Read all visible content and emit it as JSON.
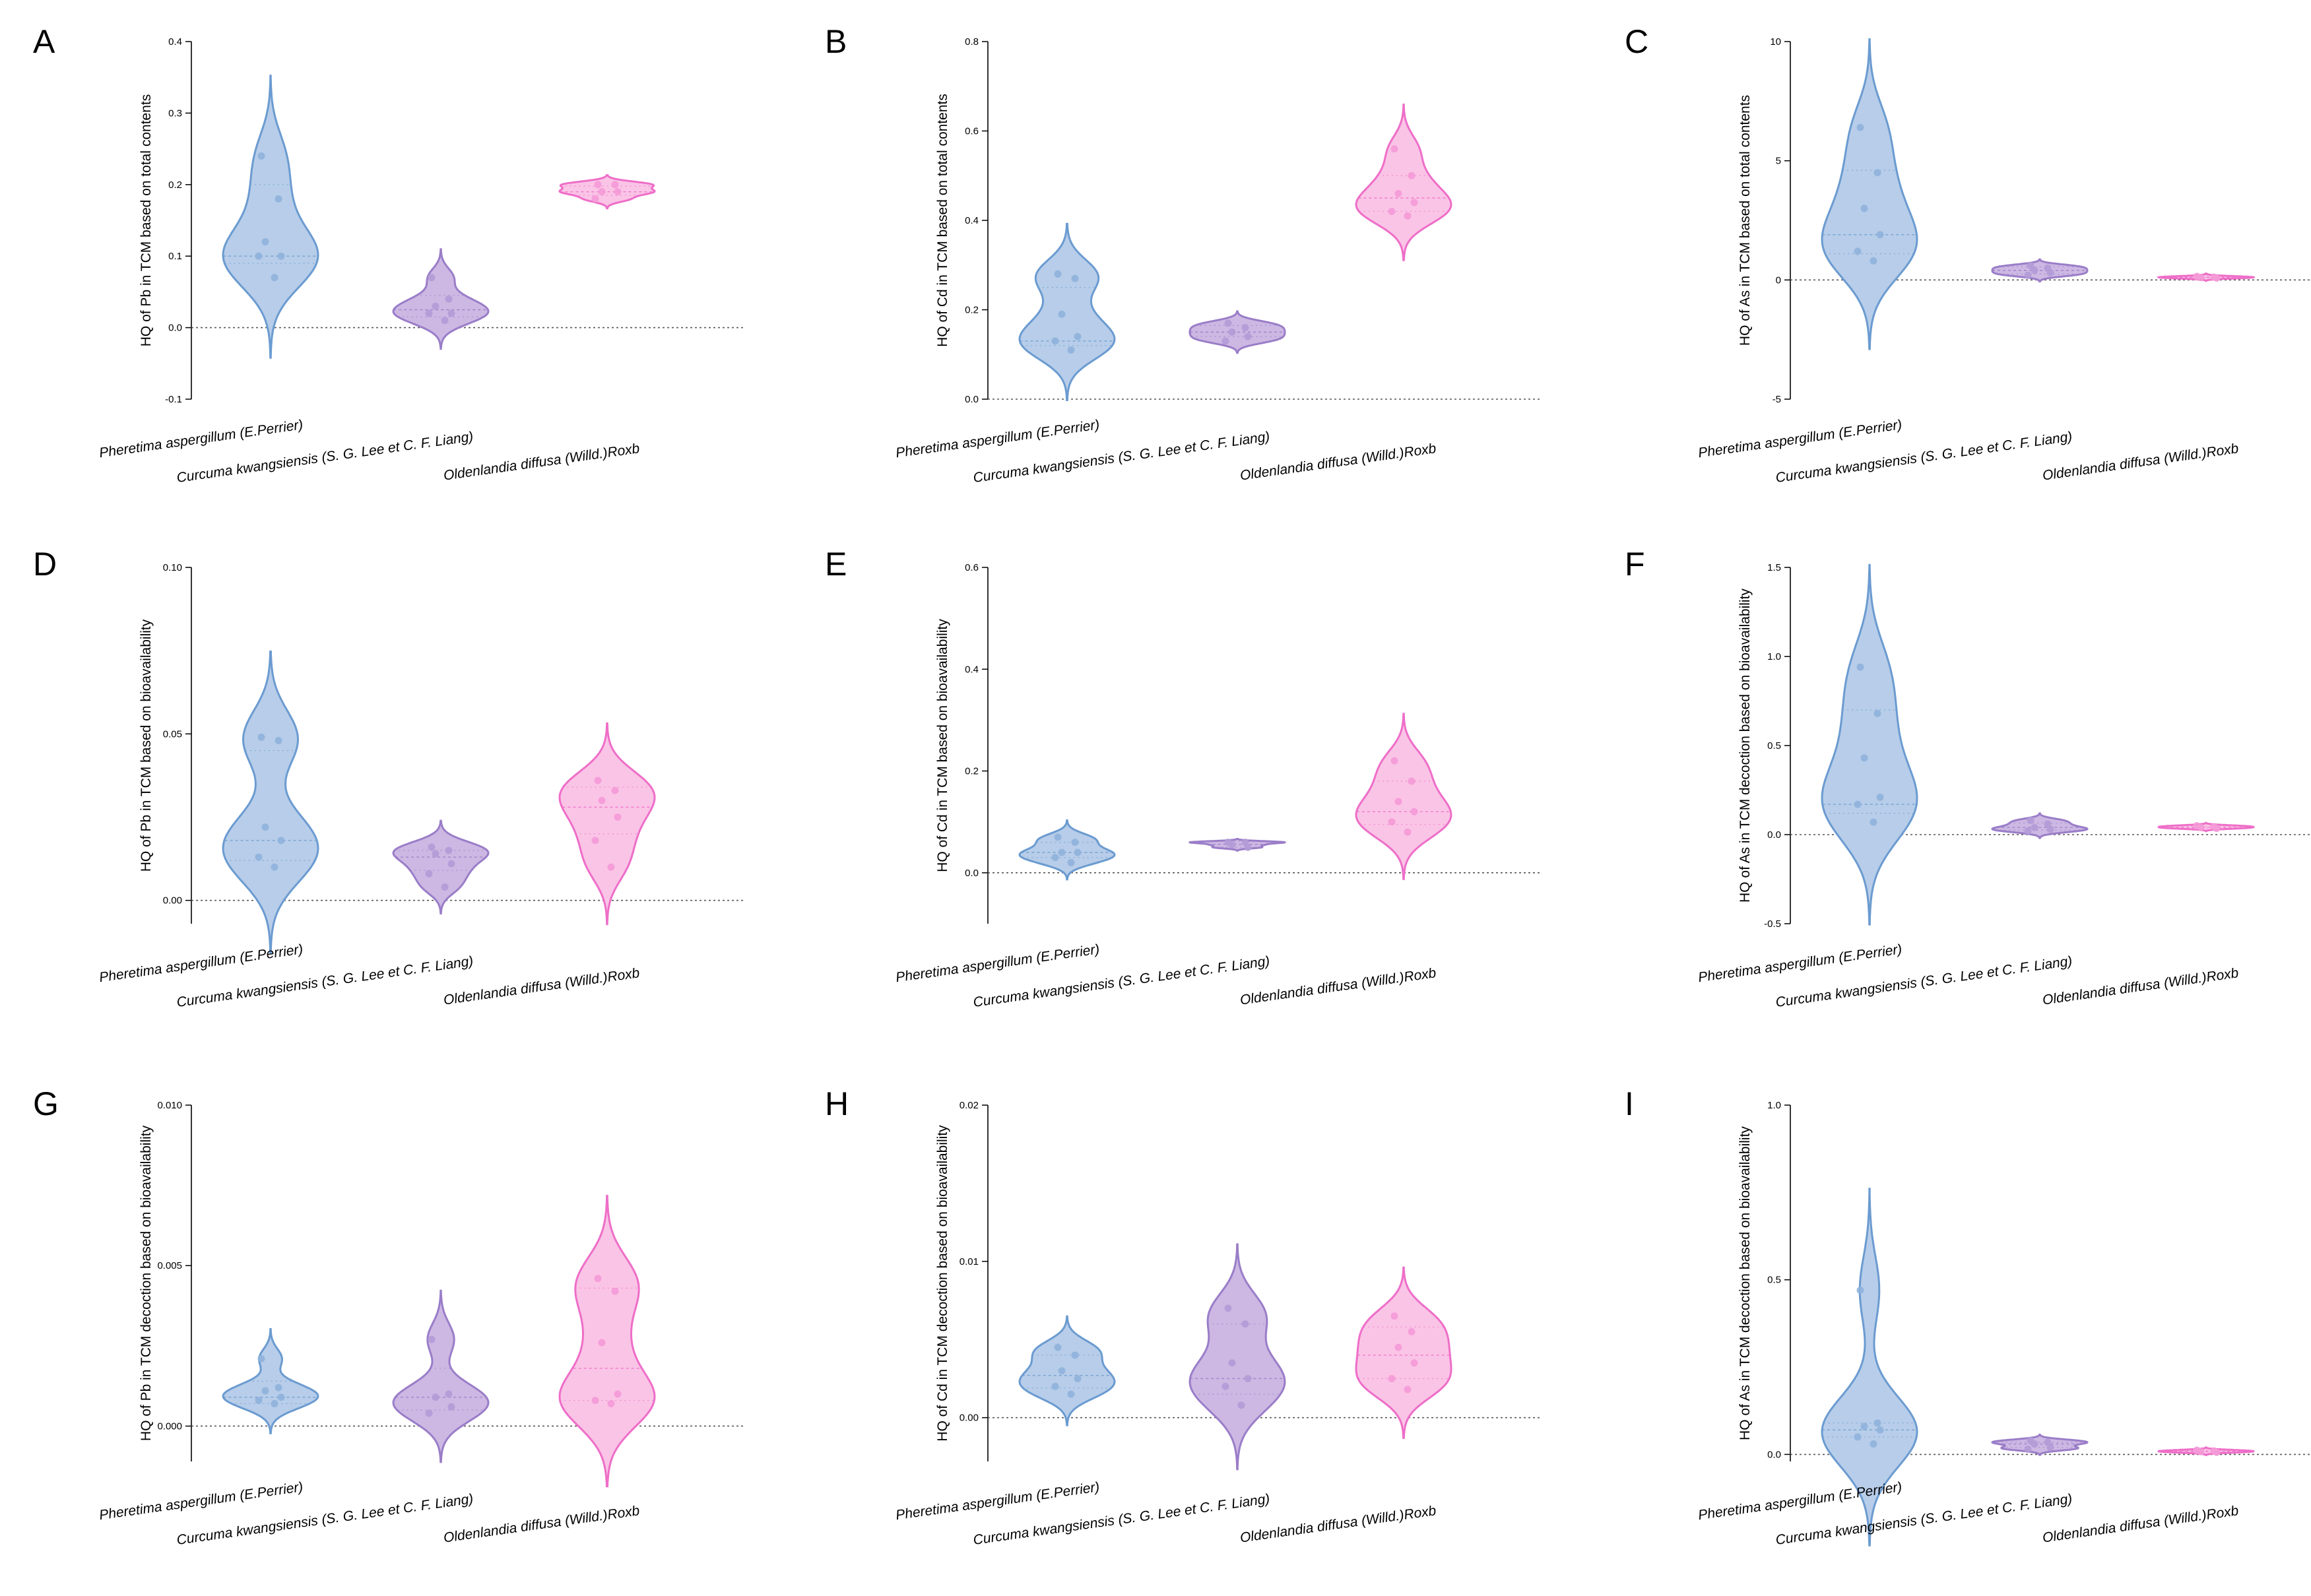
{
  "colors": {
    "blue_fill": "#b7cde9",
    "blue_edge": "#6b9bd0",
    "blue_point": "#8fb2dc",
    "purple_fill": "#ccb8e3",
    "purple_edge": "#9a7dc8",
    "purple_point": "#b29bd6",
    "pink_fill": "#fac4e6",
    "pink_edge": "#ee6ec8",
    "pink_point": "#f49ad7"
  },
  "chart_data": [
    {
      "panel": "A",
      "type": "violin",
      "ylabel": "HQ of Pb in TCM based on total contents",
      "ylim": [
        -0.1,
        0.4
      ],
      "yticks": [
        {
          "v": -0.1,
          "label": "-0.1"
        },
        {
          "v": 0.0,
          "label": "0.0"
        },
        {
          "v": 0.1,
          "label": "0.1"
        },
        {
          "v": 0.2,
          "label": "0.2"
        },
        {
          "v": 0.3,
          "label": "0.3"
        },
        {
          "v": 0.4,
          "label": "0.4"
        }
      ],
      "categories": [
        "Pheretima aspergillum (E.Perrier)",
        "Curcuma kwangsiensis (S. G. Lee et C. F. Liang)",
        "Oldenlandia diffusa (Willd.)Roxb"
      ],
      "series": [
        {
          "values": [
            0.24,
            0.18,
            0.12,
            0.1,
            0.1,
            0.07
          ],
          "median": 0.1,
          "quartiles": [
            0.09,
            0.2
          ]
        },
        {
          "values": [
            0.07,
            0.04,
            0.03,
            0.02,
            0.02,
            0.01
          ],
          "median": 0.025,
          "quartiles": [
            0.015,
            0.045
          ]
        },
        {
          "values": [
            0.2,
            0.2,
            0.19,
            0.19,
            0.18
          ],
          "median": 0.19,
          "quartiles": [
            0.185,
            0.198
          ]
        }
      ]
    },
    {
      "panel": "B",
      "type": "violin",
      "ylabel": "HQ of Cd in TCM based on total contents",
      "ylim": [
        0.0,
        0.8
      ],
      "yticks": [
        {
          "v": 0.0,
          "label": "0.0"
        },
        {
          "v": 0.2,
          "label": "0.2"
        },
        {
          "v": 0.4,
          "label": "0.4"
        },
        {
          "v": 0.6,
          "label": "0.6"
        },
        {
          "v": 0.8,
          "label": "0.8"
        }
      ],
      "categories": [
        "Pheretima aspergillum (E.Perrier)",
        "Curcuma kwangsiensis (S. G. Lee et C. F. Liang)",
        "Oldenlandia diffusa (Willd.)Roxb"
      ],
      "series": [
        {
          "values": [
            0.28,
            0.27,
            0.19,
            0.14,
            0.13,
            0.11
          ],
          "median": 0.13,
          "quartiles": [
            0.12,
            0.25
          ]
        },
        {
          "values": [
            0.17,
            0.16,
            0.15,
            0.14,
            0.13
          ],
          "median": 0.15,
          "quartiles": [
            0.14,
            0.165
          ]
        },
        {
          "values": [
            0.56,
            0.5,
            0.46,
            0.44,
            0.42,
            0.41
          ],
          "median": 0.45,
          "quartiles": [
            0.42,
            0.5
          ]
        }
      ]
    },
    {
      "panel": "C",
      "type": "violin",
      "ylabel": "HQ of As in TCM based on total contents",
      "ylim": [
        -5,
        10
      ],
      "yticks": [
        {
          "v": -5,
          "label": "-5"
        },
        {
          "v": 0,
          "label": "0"
        },
        {
          "v": 5,
          "label": "5"
        },
        {
          "v": 10,
          "label": "10"
        }
      ],
      "categories": [
        "Pheretima aspergillum (E.Perrier)",
        "Curcuma kwangsiensis (S. G. Lee et C. F. Liang)",
        "Oldenlandia diffusa (Willd.)Roxb"
      ],
      "series": [
        {
          "values": [
            6.4,
            4.5,
            3.0,
            1.9,
            1.2,
            0.8
          ],
          "median": 1.9,
          "quartiles": [
            1.1,
            4.6
          ]
        },
        {
          "values": [
            0.6,
            0.5,
            0.4,
            0.3,
            0.2
          ],
          "median": 0.4,
          "quartiles": [
            0.25,
            0.55
          ]
        },
        {
          "values": [
            0.15,
            0.12,
            0.1,
            0.08
          ],
          "median": 0.11,
          "quartiles": [
            0.09,
            0.13
          ]
        }
      ]
    },
    {
      "panel": "D",
      "type": "violin",
      "ylabel": "HQ of Pb in TCM based on bioavailability",
      "ylim": [
        -0.007,
        0.1
      ],
      "yticks": [
        {
          "v": 0.0,
          "label": "0.00"
        },
        {
          "v": 0.05,
          "label": "0.05"
        },
        {
          "v": 0.1,
          "label": "0.10"
        }
      ],
      "categories": [
        "Pheretima aspergillum (E.Perrier)",
        "Curcuma kwangsiensis (S. G. Lee et C. F. Liang)",
        "Oldenlandia diffusa (Willd.)Roxb"
      ],
      "series": [
        {
          "values": [
            0.049,
            0.048,
            0.022,
            0.018,
            0.013,
            0.01
          ],
          "median": 0.018,
          "quartiles": [
            0.012,
            0.045
          ]
        },
        {
          "values": [
            0.016,
            0.015,
            0.014,
            0.011,
            0.008,
            0.004
          ],
          "median": 0.013,
          "quartiles": [
            0.009,
            0.015
          ]
        },
        {
          "values": [
            0.036,
            0.033,
            0.03,
            0.025,
            0.018,
            0.01
          ],
          "median": 0.028,
          "quartiles": [
            0.02,
            0.034
          ]
        }
      ]
    },
    {
      "panel": "E",
      "type": "violin",
      "ylabel": "HQ of Cd in TCM based on bioavailability",
      "ylim": [
        -0.1,
        0.6
      ],
      "yticks": [
        {
          "v": 0.0,
          "label": "0.0"
        },
        {
          "v": 0.2,
          "label": "0.2"
        },
        {
          "v": 0.4,
          "label": "0.4"
        },
        {
          "v": 0.6,
          "label": "0.6"
        }
      ],
      "categories": [
        "Pheretima aspergillum (E.Perrier)",
        "Curcuma kwangsiensis (S. G. Lee et C. F. Liang)",
        "Oldenlandia diffusa (Willd.)Roxb"
      ],
      "series": [
        {
          "values": [
            0.07,
            0.06,
            0.04,
            0.04,
            0.03,
            0.02
          ],
          "median": 0.04,
          "quartiles": [
            0.03,
            0.06
          ]
        },
        {
          "values": [
            0.06,
            0.06,
            0.055,
            0.05
          ],
          "median": 0.056,
          "quartiles": [
            0.05,
            0.062
          ]
        },
        {
          "values": [
            0.22,
            0.18,
            0.14,
            0.12,
            0.1,
            0.08
          ],
          "median": 0.12,
          "quartiles": [
            0.095,
            0.18
          ]
        }
      ]
    },
    {
      "panel": "F",
      "type": "violin",
      "ylabel": "HQ of As in TCM decoction based on bioavailability",
      "ylim": [
        -0.5,
        1.5
      ],
      "yticks": [
        {
          "v": -0.5,
          "label": "-0.5"
        },
        {
          "v": 0.0,
          "label": "0.0"
        },
        {
          "v": 0.5,
          "label": "0.5"
        },
        {
          "v": 1.0,
          "label": "1.0"
        },
        {
          "v": 1.5,
          "label": "1.5"
        }
      ],
      "categories": [
        "Pheretima aspergillum (E.Perrier)",
        "Curcuma kwangsiensis (S. G. Lee et C. F. Liang)",
        "Oldenlandia diffusa (Willd.)Roxb"
      ],
      "series": [
        {
          "values": [
            0.94,
            0.68,
            0.43,
            0.21,
            0.17,
            0.07
          ],
          "median": 0.17,
          "quartiles": [
            0.12,
            0.7
          ]
        },
        {
          "values": [
            0.08,
            0.06,
            0.04,
            0.03,
            0.02
          ],
          "median": 0.04,
          "quartiles": [
            0.025,
            0.065
          ]
        },
        {
          "values": [
            0.05,
            0.045,
            0.04,
            0.035
          ],
          "median": 0.04,
          "quartiles": [
            0.036,
            0.047
          ]
        }
      ]
    },
    {
      "panel": "G",
      "type": "violin",
      "ylabel": "HQ of Pb in TCM decoction based on bioavailability",
      "ylim": [
        -0.0011,
        0.01
      ],
      "yticks": [
        {
          "v": 0.0,
          "label": "0.000"
        },
        {
          "v": 0.005,
          "label": "0.005"
        },
        {
          "v": 0.01,
          "label": "0.010"
        }
      ],
      "categories": [
        "Pheretima aspergillum (E.Perrier)",
        "Curcuma kwangsiensis (S. G. Lee et C. F. Liang)",
        "Oldenlandia diffusa (Willd.)Roxb"
      ],
      "series": [
        {
          "values": [
            0.0021,
            0.0012,
            0.0011,
            0.0009,
            0.0008,
            0.0007
          ],
          "median": 0.0009,
          "quartiles": [
            0.0007,
            0.0014
          ]
        },
        {
          "values": [
            0.0027,
            0.001,
            0.0009,
            0.0006,
            0.0004
          ],
          "median": 0.0009,
          "quartiles": [
            0.0005,
            0.0018
          ]
        },
        {
          "values": [
            0.0046,
            0.0042,
            0.0026,
            0.001,
            0.0008,
            0.0007
          ],
          "median": 0.0018,
          "quartiles": [
            0.0008,
            0.0043
          ]
        }
      ]
    },
    {
      "panel": "H",
      "type": "violin",
      "ylabel": "HQ of Cd in TCM decoction based on bioavailability",
      "ylim": [
        -0.0028,
        0.02
      ],
      "yticks": [
        {
          "v": 0.0,
          "label": "0.00"
        },
        {
          "v": 0.01,
          "label": "0.01"
        },
        {
          "v": 0.02,
          "label": "0.02"
        }
      ],
      "categories": [
        "Pheretima aspergillum (E.Perrier)",
        "Curcuma kwangsiensis (S. G. Lee et C. F. Liang)",
        "Oldenlandia diffusa (Willd.)Roxb"
      ],
      "series": [
        {
          "values": [
            0.0045,
            0.004,
            0.003,
            0.0025,
            0.002,
            0.0015
          ],
          "median": 0.0027,
          "quartiles": [
            0.0019,
            0.004
          ]
        },
        {
          "values": [
            0.007,
            0.006,
            0.0035,
            0.0025,
            0.002,
            0.0008
          ],
          "median": 0.0025,
          "quartiles": [
            0.0015,
            0.006
          ]
        },
        {
          "values": [
            0.0065,
            0.0055,
            0.0045,
            0.0035,
            0.0025,
            0.0018
          ],
          "median": 0.004,
          "quartiles": [
            0.0025,
            0.0058
          ]
        }
      ]
    },
    {
      "panel": "I",
      "type": "violin",
      "ylabel": "HQ of As in TCM decoction based on bioavailability",
      "ylim": [
        -0.02,
        1.0
      ],
      "yticks": [
        {
          "v": 0.0,
          "label": "0.0"
        },
        {
          "v": 0.5,
          "label": "0.5"
        },
        {
          "v": 1.0,
          "label": "1.0"
        }
      ],
      "categories": [
        "Pheretima aspergillum (E.Perrier)",
        "Curcuma kwangsiensis (S. G. Lee et C. F. Liang)",
        "Oldenlandia diffusa (Willd.)Roxb"
      ],
      "series": [
        {
          "values": [
            0.47,
            0.09,
            0.08,
            0.07,
            0.05,
            0.03
          ],
          "median": 0.07,
          "quartiles": [
            0.05,
            0.09
          ]
        },
        {
          "values": [
            0.04,
            0.035,
            0.03,
            0.02,
            0.015
          ],
          "median": 0.03,
          "quartiles": [
            0.02,
            0.035
          ]
        },
        {
          "values": [
            0.012,
            0.01,
            0.008,
            0.006
          ],
          "median": 0.009,
          "quartiles": [
            0.007,
            0.011
          ]
        }
      ]
    }
  ]
}
